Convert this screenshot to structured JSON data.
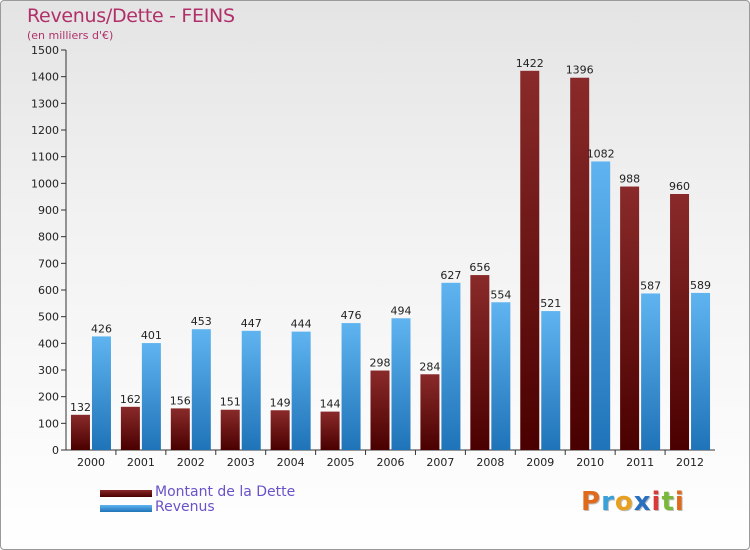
{
  "chart_data": {
    "type": "bar",
    "title": "Revenus/Dette - FEINS",
    "subtitle": "(en milliers d'€)",
    "categories": [
      "2000",
      "2001",
      "2002",
      "2003",
      "2004",
      "2005",
      "2006",
      "2007",
      "2008",
      "2009",
      "2010",
      "2011",
      "2012"
    ],
    "series": [
      {
        "name": "Montant de la Dette",
        "color": "#7a1010",
        "values": [
          132,
          162,
          156,
          151,
          149,
          144,
          298,
          284,
          656,
          1422,
          1396,
          988,
          960
        ]
      },
      {
        "name": "Revenus",
        "color": "#3a98e0",
        "values": [
          426,
          401,
          453,
          447,
          444,
          476,
          494,
          627,
          554,
          521,
          1082,
          587,
          589
        ]
      }
    ],
    "ylim": [
      0,
      1500
    ],
    "yticks": [
      0,
      100,
      200,
      300,
      400,
      500,
      600,
      700,
      800,
      900,
      1000,
      1100,
      1200,
      1300,
      1400,
      1500
    ],
    "grid": false,
    "legend": "bottom-left"
  },
  "logo": {
    "letters": [
      "P",
      "r",
      "o",
      "x",
      "i",
      "t",
      "i"
    ],
    "colors": [
      "#e06a1c",
      "#3aa0d8",
      "#e8a020",
      "#2a70c0",
      "#d83a3a",
      "#7ab83a",
      "#e06a1c"
    ]
  }
}
